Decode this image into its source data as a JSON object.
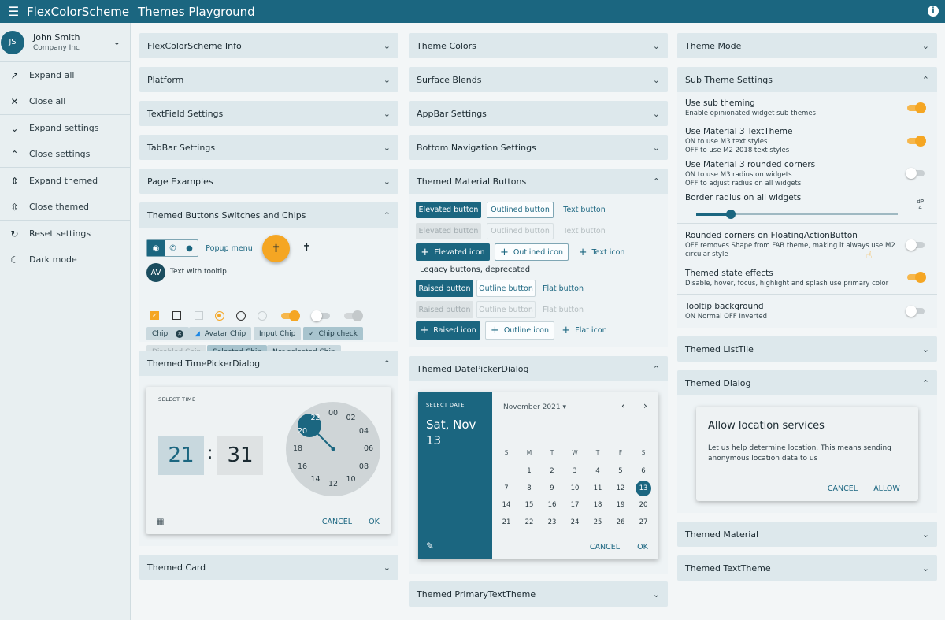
{
  "appbar": {
    "title": "FlexColorScheme",
    "page_title": "Themes Playground",
    "menu_icon": "menu-icon",
    "info_icon": "info-icon"
  },
  "drawer": {
    "user": {
      "initials": "JS",
      "name": "John Smith",
      "company": "Company Inc"
    },
    "items": [
      {
        "icon": "↗",
        "label": "Expand all"
      },
      {
        "icon": "✕",
        "label": "Close all"
      },
      {
        "icon": "⌄",
        "label": "Expand settings"
      },
      {
        "icon": "⌃",
        "label": "Close settings"
      },
      {
        "icon": "⇕",
        "label": "Expand themed"
      },
      {
        "icon": "⇳",
        "label": "Close themed"
      },
      {
        "icon": "↻",
        "label": "Reset settings"
      },
      {
        "icon": "☾",
        "label": "Dark mode"
      }
    ]
  },
  "col1": {
    "panels": [
      "FlexColorScheme Info",
      "Platform",
      "TextField Settings",
      "TabBar Settings",
      "Page Examples"
    ],
    "buttons_panel": {
      "title": "Themed Buttons Switches and Chips",
      "popup": "Popup menu",
      "avatar": "AV",
      "tooltip": "Text with tooltip",
      "chips": [
        "Chip",
        "Avatar Chip",
        "Input Chip",
        "Chip check",
        "Disabled Chip",
        "Selected Chip",
        "Not selected Chip"
      ]
    },
    "timepicker": {
      "title": "Themed TimePickerDialog",
      "label": "SELECT TIME",
      "hour": "21",
      "sep": ":",
      "minute": "31",
      "dial": [
        "00",
        "02",
        "04",
        "06",
        "08",
        "10",
        "12",
        "14",
        "16",
        "18",
        "20",
        "22"
      ],
      "cancel": "CANCEL",
      "ok": "OK"
    },
    "card": "Themed Card"
  },
  "col2": {
    "panels": [
      "Theme Colors",
      "Surface Blends",
      "AppBar Settings",
      "Bottom Navigation Settings"
    ],
    "material_buttons": {
      "title": "Themed Material Buttons",
      "elevated": "Elevated button",
      "outlined": "Outlined button",
      "text": "Text button",
      "elevated_icon": "Elevated icon",
      "outlined_icon": "Outlined icon",
      "text_icon": "Text icon",
      "legacy": "Legacy buttons, deprecated",
      "raised": "Raised button",
      "outline": "Outline button",
      "flat": "Flat button",
      "raised_icon": "Raised icon",
      "outline_icon": "Outline icon",
      "flat_icon": "Flat icon"
    },
    "datepicker": {
      "title": "Themed DatePickerDialog",
      "label": "SELECT DATE",
      "date_line1": "Sat, Nov",
      "date_line2": "13",
      "month": "November 2021",
      "weekdays": [
        "S",
        "M",
        "T",
        "W",
        "T",
        "F",
        "S"
      ],
      "days": [
        [
          "",
          "1",
          "2",
          "3",
          "4",
          "5",
          "6"
        ],
        [
          "7",
          "8",
          "9",
          "10",
          "11",
          "12",
          "13"
        ],
        [
          "14",
          "15",
          "16",
          "17",
          "18",
          "19",
          "20"
        ],
        [
          "21",
          "22",
          "23",
          "24",
          "25",
          "26",
          "27"
        ]
      ],
      "cancel": "CANCEL",
      "ok": "OK"
    },
    "primary_text": "Themed PrimaryTextTheme"
  },
  "col3": {
    "theme_mode": "Theme Mode",
    "sub": {
      "title": "Sub Theme Settings",
      "settings": [
        {
          "title": "Use sub theming",
          "sub": [
            "Enable opinionated widget sub themes"
          ],
          "state": "on"
        },
        {
          "title": "Use Material 3 TextTheme",
          "sub": [
            "ON to use M3 text styles",
            "OFF to use M2 2018 text styles"
          ],
          "state": "on"
        },
        {
          "title": "Use Material 3 rounded corners",
          "sub": [
            "ON to use M3 radius on widgets",
            "OFF to adjust radius on all widgets"
          ],
          "state": "off"
        },
        {
          "title": "Border radius on all widgets",
          "sub": [],
          "state": "slider"
        },
        {
          "title": "Rounded corners on FloatingActionButton",
          "sub": [
            "OFF removes Shape from FAB theme, making it always use M2",
            "circular style"
          ],
          "state": "off"
        },
        {
          "title": "Themed state effects",
          "sub": [
            "Disable, hover, focus, highlight and splash use primary color"
          ],
          "state": "on"
        },
        {
          "title": "Tooltip background",
          "sub": [
            "ON Normal  OFF Inverted"
          ],
          "state": "off"
        }
      ],
      "slider_unit": "dP",
      "slider_value": "4",
      "slider_fraction": 0.17
    },
    "listtile": "Themed ListTile",
    "dialog": {
      "title": "Themed Dialog",
      "heading": "Allow location services",
      "body1": "Let us help determine location. This means sending",
      "body2": "anonymous location data to us",
      "cancel": "CANCEL",
      "allow": "ALLOW"
    },
    "material": "Themed Material",
    "texttheme": "Themed TextTheme"
  },
  "chevron": "⌄",
  "chevron_up": "⌃"
}
